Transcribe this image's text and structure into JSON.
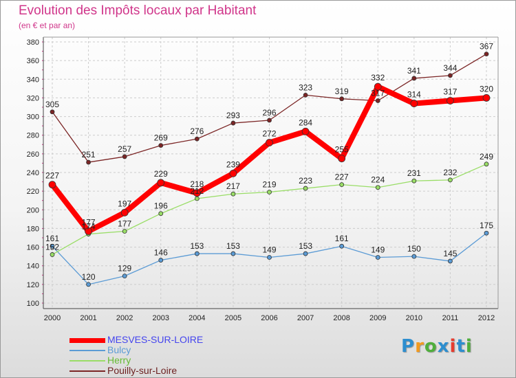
{
  "title": "Evolution des Impôts locaux par Habitant",
  "subtitle": "(en € et par an)",
  "logo": {
    "text": "Proxiti",
    "colors": [
      "#2d8ecf",
      "#f29a1f",
      "#4fae3c",
      "#2d8ecf",
      "#e63c2f",
      "#2d8ecf",
      "#4fae3c"
    ]
  },
  "chart_data": {
    "type": "line",
    "x": [
      "2000",
      "2001",
      "2002",
      "2003",
      "2004",
      "2005",
      "2006",
      "2007",
      "2008",
      "2009",
      "2010",
      "2011",
      "2012"
    ],
    "ylim": [
      100,
      380
    ],
    "yticks": [
      100,
      120,
      140,
      160,
      180,
      200,
      220,
      240,
      260,
      280,
      300,
      320,
      340,
      360,
      380
    ],
    "grid": true,
    "legend_position": "bottom-left",
    "series": [
      {
        "name": "MESVES-SUR-LOIRE",
        "color": "#ff0000",
        "width": 8,
        "values": [
          227,
          177,
          197,
          229,
          218,
          239,
          272,
          284,
          255,
          332,
          314,
          317,
          320
        ],
        "labels": [
          "227",
          "177",
          "197",
          "229",
          "218",
          "239",
          "272",
          "284",
          "255",
          "332",
          "314",
          "317",
          "320"
        ],
        "label_color": "#4444ee"
      },
      {
        "name": "Bulcy",
        "color": "#5b9bd5",
        "width": 1.3,
        "values": [
          161,
          120,
          129,
          146,
          153,
          153,
          149,
          153,
          161,
          149,
          150,
          145,
          175
        ],
        "labels": [
          "161",
          "120",
          "129",
          "146",
          "153",
          "153",
          "149",
          "153",
          "161",
          "149",
          "150",
          "145",
          "175"
        ],
        "label_color": "#5b9bd5"
      },
      {
        "name": "Herry",
        "color": "#99dd66",
        "width": 1.3,
        "values": [
          152,
          174,
          177,
          196,
          212,
          217,
          219,
          223,
          227,
          224,
          231,
          232,
          249
        ],
        "labels": [
          "152",
          "174",
          "177",
          "196",
          "212",
          "217",
          "219",
          "223",
          "227",
          "224",
          "231",
          "232",
          "249"
        ],
        "label_color": "#66bb33"
      },
      {
        "name": "Pouilly-sur-Loire",
        "color": "#7b2525",
        "width": 1.3,
        "values": [
          305,
          251,
          257,
          269,
          276,
          293,
          296,
          323,
          319,
          317,
          341,
          344,
          367
        ],
        "labels": [
          "305",
          "251",
          "257",
          "269",
          "276",
          "293",
          "296",
          "323",
          "319",
          "317",
          "341",
          "344",
          "367"
        ],
        "label_color": "#6b1f1f"
      }
    ]
  }
}
